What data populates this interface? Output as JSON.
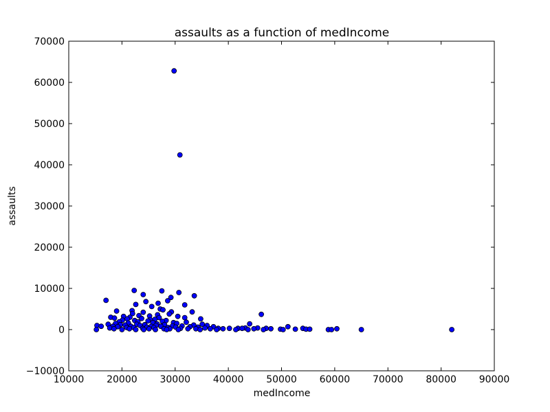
{
  "chart_data": {
    "type": "scatter",
    "title": "assaults as a function of medIncome",
    "xlabel": "medIncome",
    "ylabel": "assaults",
    "xlim": [
      10000,
      90000
    ],
    "ylim": [
      -10000,
      70000
    ],
    "xticks": [
      10000,
      20000,
      30000,
      40000,
      50000,
      60000,
      70000,
      80000,
      90000
    ],
    "yticks": [
      -10000,
      0,
      10000,
      20000,
      30000,
      40000,
      50000,
      60000,
      70000
    ],
    "xtick_labels": [
      "10000",
      "20000",
      "30000",
      "40000",
      "50000",
      "60000",
      "70000",
      "80000",
      "90000"
    ],
    "ytick_labels": [
      "−10000",
      "0",
      "10000",
      "20000",
      "30000",
      "40000",
      "50000",
      "60000",
      "70000"
    ],
    "grid": false,
    "marker_color": "#0000ff",
    "marker_edge_color": "#000000",
    "points": [
      [
        29800,
        62800
      ],
      [
        30900,
        42400
      ],
      [
        22300,
        9500
      ],
      [
        27500,
        9400
      ],
      [
        30700,
        9000
      ],
      [
        24000,
        8500
      ],
      [
        33600,
        8200
      ],
      [
        29200,
        7800
      ],
      [
        17000,
        7100
      ],
      [
        28600,
        7000
      ],
      [
        24500,
        6800
      ],
      [
        26800,
        6400
      ],
      [
        22600,
        6100
      ],
      [
        31800,
        6000
      ],
      [
        25600,
        5600
      ],
      [
        27200,
        5000
      ],
      [
        27700,
        4800
      ],
      [
        21900,
        4600
      ],
      [
        19000,
        4500
      ],
      [
        33200,
        4300
      ],
      [
        29300,
        4300
      ],
      [
        24000,
        4200
      ],
      [
        22000,
        3900
      ],
      [
        28900,
        3800
      ],
      [
        46200,
        3700
      ],
      [
        26700,
        3600
      ],
      [
        23200,
        3400
      ],
      [
        25200,
        3300
      ],
      [
        20300,
        3200
      ],
      [
        30500,
        3200
      ],
      [
        17900,
        3000
      ],
      [
        21500,
        3000
      ],
      [
        27000,
        2900
      ],
      [
        31800,
        2900
      ],
      [
        18600,
        2800
      ],
      [
        23700,
        2700
      ],
      [
        34800,
        2600
      ],
      [
        21000,
        2600
      ],
      [
        26200,
        2500
      ],
      [
        25300,
        2400
      ],
      [
        20100,
        2300
      ],
      [
        22400,
        2200
      ],
      [
        28300,
        2200
      ],
      [
        24900,
        2100
      ],
      [
        27600,
        2000
      ],
      [
        19500,
        1900
      ],
      [
        23000,
        1900
      ],
      [
        32100,
        1800
      ],
      [
        25800,
        1700
      ],
      [
        29700,
        1700
      ],
      [
        21200,
        1600
      ],
      [
        18800,
        1500
      ],
      [
        30300,
        1500
      ],
      [
        26600,
        1400
      ],
      [
        44000,
        1400
      ],
      [
        17400,
        1300
      ],
      [
        22800,
        1300
      ],
      [
        35100,
        1300
      ],
      [
        19700,
        1200
      ],
      [
        24300,
        1200
      ],
      [
        28000,
        1200
      ],
      [
        33500,
        1100
      ],
      [
        20600,
        1100
      ],
      [
        26400,
        1000
      ],
      [
        36000,
        1000
      ],
      [
        15300,
        1000
      ],
      [
        23400,
        1000
      ],
      [
        29500,
        900
      ],
      [
        31300,
        900
      ],
      [
        16100,
        800
      ],
      [
        18300,
        800
      ],
      [
        21700,
        800
      ],
      [
        25500,
        800
      ],
      [
        27300,
        800
      ],
      [
        32800,
        700
      ],
      [
        37200,
        700
      ],
      [
        51200,
        700
      ],
      [
        19200,
        700
      ],
      [
        24700,
        600
      ],
      [
        30100,
        600
      ],
      [
        34300,
        600
      ],
      [
        22200,
        500
      ],
      [
        20900,
        500
      ],
      [
        26000,
        500
      ],
      [
        28700,
        500
      ],
      [
        35600,
        400
      ],
      [
        43200,
        400
      ],
      [
        45500,
        400
      ],
      [
        17700,
        400
      ],
      [
        23900,
        300
      ],
      [
        31000,
        300
      ],
      [
        38100,
        300
      ],
      [
        40200,
        300
      ],
      [
        41800,
        300
      ],
      [
        42600,
        300
      ],
      [
        47100,
        300
      ],
      [
        54000,
        300
      ],
      [
        60400,
        200
      ],
      [
        18500,
        200
      ],
      [
        21400,
        200
      ],
      [
        25100,
        200
      ],
      [
        27900,
        200
      ],
      [
        29000,
        200
      ],
      [
        32400,
        200
      ],
      [
        33900,
        200
      ],
      [
        36600,
        200
      ],
      [
        39000,
        200
      ],
      [
        44800,
        200
      ],
      [
        48000,
        200
      ],
      [
        49800,
        100
      ],
      [
        52600,
        100
      ],
      [
        54600,
        100
      ],
      [
        55300,
        100
      ],
      [
        15200,
        0
      ],
      [
        20000,
        0
      ],
      [
        22600,
        0
      ],
      [
        24100,
        0
      ],
      [
        26300,
        0
      ],
      [
        28400,
        0
      ],
      [
        30600,
        0
      ],
      [
        34700,
        0
      ],
      [
        37800,
        0
      ],
      [
        41400,
        0
      ],
      [
        43700,
        0
      ],
      [
        46600,
        0
      ],
      [
        50300,
        0
      ],
      [
        58800,
        0
      ],
      [
        59400,
        0
      ],
      [
        65000,
        0
      ],
      [
        82000,
        0
      ]
    ]
  }
}
